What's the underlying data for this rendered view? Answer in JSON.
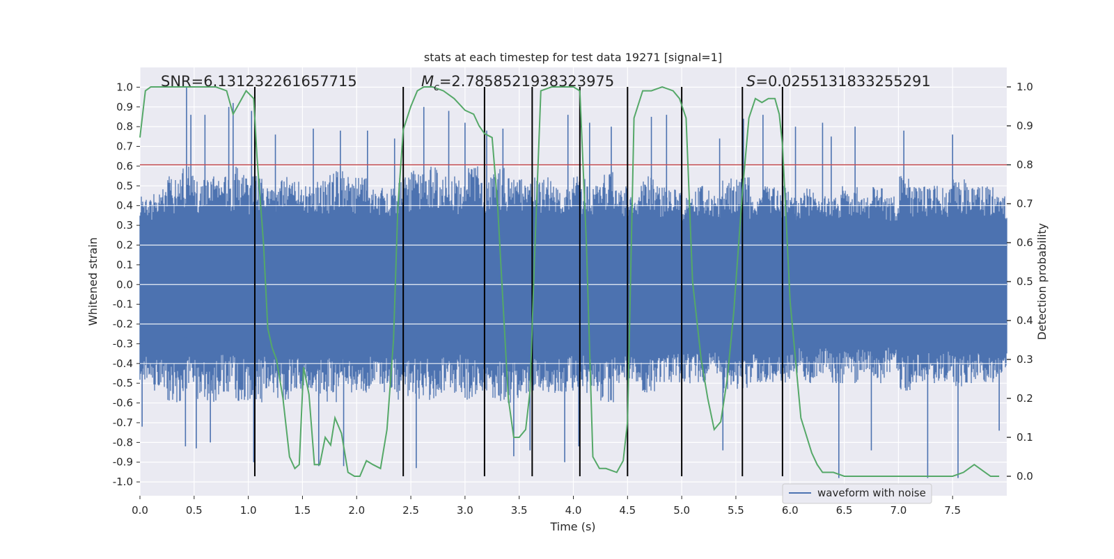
{
  "chart_data": {
    "type": "line",
    "title": "stats at each timestep for test data 19271 [signal=1]",
    "xlabel": "Time (s)",
    "ylabel_left": "Whitened strain",
    "ylabel_right": "Detection probability",
    "xlim": [
      0.0,
      8.0
    ],
    "ylim_left": [
      -1.07,
      1.1
    ],
    "ylim_right": [
      -0.05,
      1.05
    ],
    "x_ticks": [
      "0.0",
      "0.5",
      "1.0",
      "1.5",
      "2.0",
      "2.5",
      "3.0",
      "3.5",
      "4.0",
      "4.5",
      "5.0",
      "5.5",
      "6.0",
      "6.5",
      "7.0",
      "7.5"
    ],
    "x_tick_values": [
      0.0,
      0.5,
      1.0,
      1.5,
      2.0,
      2.5,
      3.0,
      3.5,
      4.0,
      4.5,
      5.0,
      5.5,
      6.0,
      6.5,
      7.0,
      7.5
    ],
    "y_left_ticks": [
      "1.0",
      "0.9",
      "0.8",
      "0.7",
      "0.6",
      "0.5",
      "0.4",
      "0.3",
      "0.2",
      "0.1",
      "0.0",
      "-0.1",
      "-0.2",
      "-0.3",
      "-0.4",
      "-0.5",
      "-0.6",
      "-0.7",
      "-0.8",
      "-0.9",
      "-1.0"
    ],
    "y_left_tick_values": [
      1.0,
      0.9,
      0.8,
      0.7,
      0.6,
      0.5,
      0.4,
      0.3,
      0.2,
      0.1,
      0.0,
      -0.1,
      -0.2,
      -0.3,
      -0.4,
      -0.5,
      -0.6,
      -0.7,
      -0.8,
      -0.9,
      -1.0
    ],
    "y_right_ticks": [
      "1.0",
      "0.9",
      "0.8",
      "0.7",
      "0.6",
      "0.5",
      "0.4",
      "0.3",
      "0.2",
      "0.1",
      "0.0"
    ],
    "y_right_tick_values": [
      1.0,
      0.9,
      0.8,
      0.7,
      0.6,
      0.5,
      0.4,
      0.3,
      0.2,
      0.1,
      0.0
    ],
    "threshold": {
      "value": 0.8,
      "color": "#c44e52"
    },
    "vertical_markers": [
      1.06,
      2.43,
      3.18,
      3.62,
      4.06,
      4.5,
      5.0,
      5.56,
      5.93
    ],
    "annotations": {
      "snr_label": "SNR=",
      "snr_value": "6.131232261657715",
      "mc_symbol": "M",
      "mc_subscript": "c",
      "mc_value": "=2.7858521938323975",
      "s_symbol": "S",
      "s_value": "=0.0255131833255291"
    },
    "series": [
      {
        "name": "waveform with noise",
        "color": "#4c72b0",
        "envelope_upper": [
          0.45,
          0.5,
          0.55,
          0.6,
          0.55,
          0.55,
          0.55,
          0.6,
          0.55,
          0.5,
          0.55,
          0.55,
          0.5,
          0.55,
          0.6,
          0.55,
          0.55,
          0.5,
          0.5,
          0.55,
          0.6,
          0.6,
          0.55,
          0.55,
          0.6,
          0.55,
          0.6,
          0.55,
          0.55,
          0.55,
          0.55,
          0.5,
          0.55,
          0.5,
          0.6,
          0.5,
          0.45,
          0.55,
          0.5,
          0.5,
          0.45,
          0.5,
          0.45,
          0.55,
          0.55,
          0.45,
          0.5,
          0.5,
          0.45,
          0.5,
          0.45,
          0.5,
          0.5,
          0.45,
          0.5,
          0.45,
          0.55,
          0.5,
          0.5,
          0.5,
          0.55,
          0.5,
          0.5,
          0.45
        ],
        "envelope_lower": [
          -0.5,
          -0.55,
          -0.6,
          -0.55,
          -0.6,
          -0.6,
          -0.55,
          -0.6,
          -0.6,
          -0.55,
          -0.6,
          -0.55,
          -0.55,
          -0.6,
          -0.6,
          -0.55,
          -0.55,
          -0.55,
          -0.55,
          -0.6,
          -0.6,
          -0.6,
          -0.55,
          -0.55,
          -0.6,
          -0.55,
          -0.6,
          -0.6,
          -0.55,
          -0.55,
          -0.55,
          -0.55,
          -0.55,
          -0.55,
          -0.6,
          -0.5,
          -0.5,
          -0.55,
          -0.5,
          -0.5,
          -0.5,
          -0.5,
          -0.45,
          -0.55,
          -0.55,
          -0.5,
          -0.5,
          -0.5,
          -0.45,
          -0.5,
          -0.45,
          -0.5,
          -0.5,
          -0.45,
          -0.5,
          -0.45,
          -0.55,
          -0.5,
          -0.5,
          -0.5,
          -0.55,
          -0.5,
          -0.5,
          -0.5
        ],
        "spikes": [
          [
            0.02,
            -0.72
          ],
          [
            0.43,
            1.0
          ],
          [
            0.47,
            0.86
          ],
          [
            0.42,
            -0.82
          ],
          [
            0.52,
            -0.83
          ],
          [
            0.6,
            0.86
          ],
          [
            0.65,
            -0.8
          ],
          [
            0.82,
            0.9
          ],
          [
            0.86,
            0.92
          ],
          [
            1.05,
            -0.9
          ],
          [
            1.03,
            0.88
          ],
          [
            1.25,
            0.76
          ],
          [
            1.6,
            0.79
          ],
          [
            1.65,
            -0.92
          ],
          [
            1.85,
            0.78
          ],
          [
            1.88,
            -0.92
          ],
          [
            2.1,
            0.78
          ],
          [
            2.35,
            0.74
          ],
          [
            2.55,
            -0.93
          ],
          [
            2.62,
            0.9
          ],
          [
            2.85,
            0.88
          ],
          [
            3.0,
            0.82
          ],
          [
            3.2,
            0.78
          ],
          [
            3.35,
            0.79
          ],
          [
            3.45,
            -0.87
          ],
          [
            3.6,
            -0.84
          ],
          [
            3.92,
            -0.9
          ],
          [
            3.95,
            0.86
          ],
          [
            4.05,
            -0.82
          ],
          [
            4.15,
            0.82
          ],
          [
            4.35,
            0.8
          ],
          [
            4.72,
            0.85
          ],
          [
            4.86,
            0.86
          ],
          [
            5.0,
            0.82
          ],
          [
            5.35,
            0.74
          ],
          [
            5.38,
            -0.84
          ],
          [
            5.57,
            0.84
          ],
          [
            5.75,
            0.86
          ],
          [
            6.05,
            0.8
          ],
          [
            6.3,
            0.82
          ],
          [
            6.38,
            0.75
          ],
          [
            6.45,
            -0.98
          ],
          [
            6.6,
            0.8
          ],
          [
            6.75,
            -0.84
          ],
          [
            7.05,
            0.78
          ],
          [
            7.27,
            -0.98
          ],
          [
            7.5,
            0.76
          ],
          [
            7.55,
            -0.98
          ],
          [
            7.93,
            -0.74
          ]
        ]
      },
      {
        "name": "Detection probability",
        "color": "#55a868",
        "x": [
          0.0,
          0.05,
          0.1,
          0.2,
          0.3,
          0.5,
          0.6,
          0.7,
          0.8,
          0.86,
          0.92,
          0.98,
          1.05,
          1.08,
          1.14,
          1.18,
          1.22,
          1.26,
          1.32,
          1.38,
          1.43,
          1.47,
          1.51,
          1.56,
          1.61,
          1.66,
          1.71,
          1.76,
          1.8,
          1.86,
          1.92,
          1.98,
          2.03,
          2.09,
          2.15,
          2.22,
          2.28,
          2.34,
          2.38,
          2.43,
          2.5,
          2.56,
          2.62,
          2.7,
          2.8,
          2.9,
          3.0,
          3.08,
          3.13,
          3.18,
          3.25,
          3.3,
          3.35,
          3.4,
          3.45,
          3.5,
          3.56,
          3.6,
          3.64,
          3.7,
          3.8,
          3.9,
          4.0,
          4.06,
          4.12,
          4.18,
          4.24,
          4.3,
          4.4,
          4.46,
          4.5,
          4.56,
          4.64,
          4.72,
          4.82,
          4.92,
          4.98,
          5.04,
          5.1,
          5.18,
          5.24,
          5.3,
          5.36,
          5.42,
          5.48,
          5.56,
          5.62,
          5.68,
          5.74,
          5.8,
          5.86,
          5.9,
          5.93,
          6.0,
          6.1,
          6.2,
          6.25,
          6.3,
          6.4,
          6.5,
          6.6,
          6.7,
          6.8,
          6.9,
          7.0,
          7.1,
          7.2,
          7.3,
          7.4,
          7.5,
          7.6,
          7.65,
          7.7,
          7.75,
          7.8,
          7.85,
          7.93
        ],
        "y": [
          0.87,
          0.99,
          1.0,
          1.0,
          1.0,
          1.0,
          1.0,
          1.0,
          0.99,
          0.93,
          0.96,
          0.99,
          0.97,
          0.82,
          0.6,
          0.38,
          0.33,
          0.3,
          0.2,
          0.05,
          0.02,
          0.03,
          0.28,
          0.21,
          0.03,
          0.03,
          0.1,
          0.08,
          0.15,
          0.11,
          0.01,
          0.0,
          0.0,
          0.04,
          0.03,
          0.02,
          0.12,
          0.35,
          0.69,
          0.89,
          0.95,
          0.99,
          1.0,
          1.0,
          0.99,
          0.97,
          0.94,
          0.93,
          0.9,
          0.88,
          0.87,
          0.7,
          0.45,
          0.2,
          0.1,
          0.1,
          0.12,
          0.22,
          0.55,
          0.99,
          1.0,
          1.0,
          1.0,
          0.99,
          0.6,
          0.05,
          0.02,
          0.02,
          0.01,
          0.04,
          0.14,
          0.92,
          0.99,
          0.99,
          1.0,
          0.99,
          0.97,
          0.92,
          0.5,
          0.3,
          0.2,
          0.12,
          0.14,
          0.25,
          0.42,
          0.73,
          0.92,
          0.97,
          0.96,
          0.97,
          0.97,
          0.93,
          0.85,
          0.45,
          0.15,
          0.06,
          0.03,
          0.01,
          0.01,
          0.0,
          0.0,
          0.0,
          0.0,
          0.0,
          0.0,
          0.0,
          0.0,
          0.0,
          0.0,
          0.0,
          0.01,
          0.02,
          0.03,
          0.02,
          0.01,
          0.0,
          0.0
        ]
      }
    ],
    "legend": {
      "entries": [
        "waveform with noise"
      ],
      "location": "bottom-right"
    },
    "background": "#eaeaf2",
    "grid": true
  }
}
